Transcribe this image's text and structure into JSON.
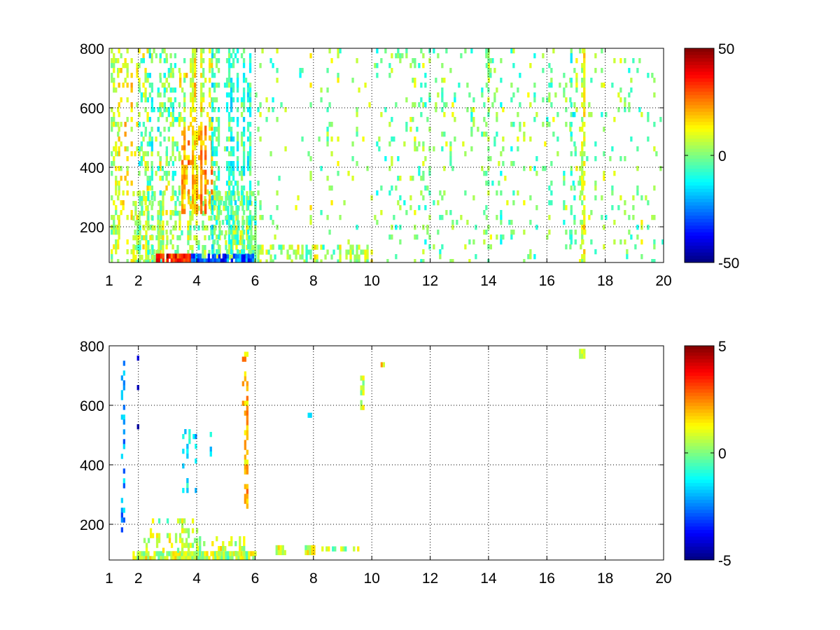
{
  "chart_data": [
    {
      "type": "heatmap",
      "title": "",
      "xlabel": "",
      "ylabel": "",
      "xlim": [
        1,
        20
      ],
      "ylim": [
        80,
        800
      ],
      "x_ticks": [
        1,
        2,
        4,
        6,
        8,
        10,
        12,
        14,
        16,
        18,
        20
      ],
      "y_ticks": [
        200,
        400,
        600,
        800
      ],
      "grid": true,
      "colormap": "jet",
      "clim": [
        -50,
        50
      ],
      "colorbar_ticks": [
        50,
        0,
        -50
      ],
      "regions": [
        {
          "x": [
            1.05,
            1.3
          ],
          "y": [
            80,
            800
          ],
          "value": 4,
          "density": 0.45,
          "stripe": 0.3
        },
        {
          "x": [
            1.3,
            1.85
          ],
          "y": [
            80,
            800
          ],
          "value": 14,
          "density": 0.35,
          "stripe": 0.5
        },
        {
          "x": [
            1.85,
            3.2
          ],
          "y": [
            80,
            800
          ],
          "value": 5,
          "density": 0.28,
          "stripe": 0.3
        },
        {
          "x": [
            1.8,
            6.0
          ],
          "y": [
            80,
            320
          ],
          "value": 2,
          "density": 0.6,
          "stripe": 0.2
        },
        {
          "x": [
            2.6,
            3.8
          ],
          "y": [
            80,
            110
          ],
          "value": 38,
          "density": 0.95,
          "stripe": 0
        },
        {
          "x": [
            3.8,
            5.9
          ],
          "y": [
            80,
            110
          ],
          "value": -30,
          "density": 0.85,
          "stripe": 0
        },
        {
          "x": [
            3.4,
            4.5
          ],
          "y": [
            250,
            540
          ],
          "value": 18,
          "density": 0.8,
          "stripe": 0.4
        },
        {
          "x": [
            3.4,
            4.5
          ],
          "y": [
            540,
            800
          ],
          "value": 10,
          "density": 0.55,
          "stripe": 0.6
        },
        {
          "x": [
            4.5,
            5.8
          ],
          "y": [
            110,
            800
          ],
          "value": -6,
          "density": 0.55,
          "stripe": 0.6
        },
        {
          "x": [
            2.0,
            3.4
          ],
          "y": [
            320,
            800
          ],
          "value": -4,
          "density": 0.25,
          "stripe": 0.6
        },
        {
          "x": [
            6.0,
            10.0
          ],
          "y": [
            80,
            140
          ],
          "value": 4,
          "density": 0.55,
          "stripe": 0.2
        },
        {
          "x": [
            6.0,
            10.0
          ],
          "y": [
            140,
            800
          ],
          "value": 2,
          "density": 0.1,
          "stripe": 0.8
        },
        {
          "x": [
            10.0,
            20.0
          ],
          "y": [
            80,
            800
          ],
          "value": 0,
          "density": 0.12,
          "stripe": 0.6
        },
        {
          "x": [
            13.9,
            14.1
          ],
          "y": [
            80,
            800
          ],
          "value": 8,
          "density": 0.7,
          "stripe": 1
        },
        {
          "x": [
            17.1,
            17.3
          ],
          "y": [
            80,
            800
          ],
          "value": 12,
          "density": 0.7,
          "stripe": 1
        },
        {
          "x": [
            16.8,
            17.0
          ],
          "y": [
            80,
            800
          ],
          "value": -10,
          "density": 0.4,
          "stripe": 1
        }
      ]
    },
    {
      "type": "heatmap",
      "title": "",
      "xlabel": "",
      "ylabel": "",
      "xlim": [
        1,
        20
      ],
      "ylim": [
        80,
        800
      ],
      "x_ticks": [
        1,
        2,
        4,
        6,
        8,
        10,
        12,
        14,
        16,
        18,
        20
      ],
      "y_ticks": [
        200,
        400,
        600,
        800
      ],
      "grid": true,
      "colormap": "jet",
      "clim": [
        -5,
        5
      ],
      "colorbar_ticks": [
        5,
        0,
        -5
      ],
      "regions": [
        {
          "x": [
            1.8,
            6.0
          ],
          "y": [
            80,
            110
          ],
          "value": 0.6,
          "density": 0.9,
          "stripe": 0
        },
        {
          "x": [
            2.1,
            4.0
          ],
          "y": [
            110,
            220
          ],
          "value": 0.7,
          "density": 0.35,
          "stripe": 0.6
        },
        {
          "x": [
            4.0,
            5.6
          ],
          "y": [
            110,
            160
          ],
          "value": 0.6,
          "density": 0.4,
          "stripe": 0.6
        },
        {
          "x": [
            1.4,
            1.5
          ],
          "y": [
            180,
            750
          ],
          "value": -2,
          "density": 0.3,
          "stripe": 1
        },
        {
          "x": [
            1.95,
            2.0
          ],
          "y": [
            500,
            800
          ],
          "value": -4,
          "density": 0.6,
          "stripe": 1
        },
        {
          "x": [
            3.5,
            4.0
          ],
          "y": [
            320,
            520
          ],
          "value": -1.5,
          "density": 0.3,
          "stripe": 0.8
        },
        {
          "x": [
            4.3,
            4.5
          ],
          "y": [
            360,
            560
          ],
          "value": -1,
          "density": 0.25,
          "stripe": 1
        },
        {
          "x": [
            5.55,
            5.7
          ],
          "y": [
            260,
            780
          ],
          "value": 1.5,
          "density": 0.4,
          "stripe": 1
        },
        {
          "x": [
            6.7,
            7.0
          ],
          "y": [
            110,
            130
          ],
          "value": 0.8,
          "density": 0.9,
          "stripe": 0
        },
        {
          "x": [
            7.7,
            8.0
          ],
          "y": [
            110,
            130
          ],
          "value": 0.8,
          "density": 0.9,
          "stripe": 0
        },
        {
          "x": [
            8.2,
            9.5
          ],
          "y": [
            118,
            126
          ],
          "value": 0.5,
          "density": 0.6,
          "stripe": 0
        },
        {
          "x": [
            9.6,
            9.7
          ],
          "y": [
            600,
            700
          ],
          "value": 0.7,
          "density": 0.6,
          "stripe": 0
        },
        {
          "x": [
            10.3,
            10.4
          ],
          "y": [
            730,
            745
          ],
          "value": 2,
          "density": 1,
          "stripe": 0
        },
        {
          "x": [
            7.8,
            7.9
          ],
          "y": [
            560,
            575
          ],
          "value": -1.5,
          "density": 1,
          "stripe": 0
        },
        {
          "x": [
            17.1,
            17.3
          ],
          "y": [
            770,
            790
          ],
          "value": 0.5,
          "density": 1,
          "stripe": 0
        }
      ]
    }
  ]
}
